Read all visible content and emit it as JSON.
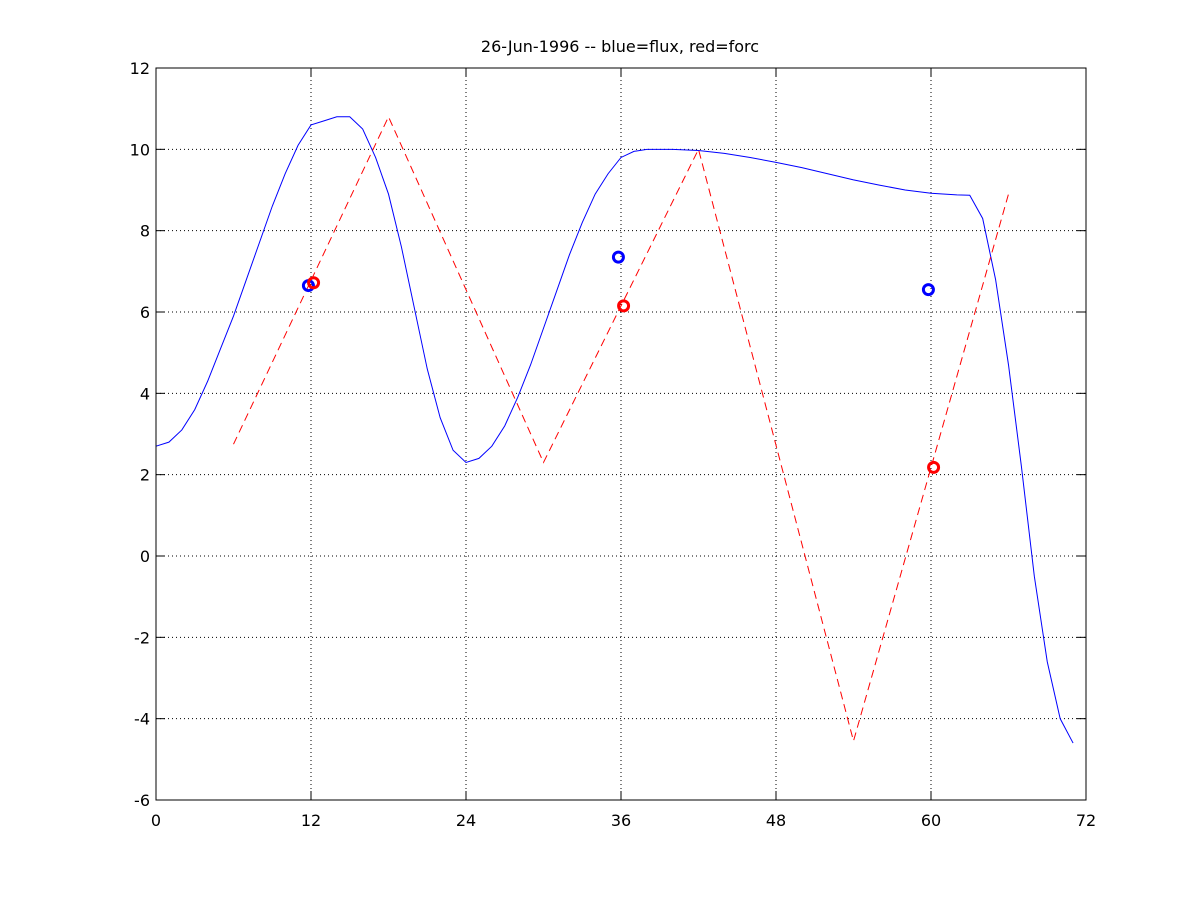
{
  "chart_data": {
    "type": "line",
    "title": "26-Jun-1996 -- blue=flux, red=forc",
    "xlim": [
      0,
      72
    ],
    "ylim": [
      -6,
      12
    ],
    "xticks": [
      0,
      12,
      24,
      36,
      48,
      60,
      72
    ],
    "yticks": [
      -6,
      -4,
      -2,
      0,
      2,
      4,
      6,
      8,
      10,
      12
    ],
    "grid": true,
    "series": [
      {
        "color": "#0000ff",
        "style": "solid",
        "points": [
          [
            0,
            2.7
          ],
          [
            1,
            2.8
          ],
          [
            2,
            3.1
          ],
          [
            3,
            3.6
          ],
          [
            4,
            4.3
          ],
          [
            5,
            5.1
          ],
          [
            6,
            5.9
          ],
          [
            7,
            6.8
          ],
          [
            8,
            7.7
          ],
          [
            9,
            8.6
          ],
          [
            10,
            9.4
          ],
          [
            11,
            10.1
          ],
          [
            12,
            10.6
          ],
          [
            13,
            10.7
          ],
          [
            14,
            10.8
          ],
          [
            15,
            10.8
          ],
          [
            16,
            10.5
          ],
          [
            17,
            9.8
          ],
          [
            18,
            8.9
          ],
          [
            19,
            7.6
          ],
          [
            20,
            6.1
          ],
          [
            21,
            4.6
          ],
          [
            22,
            3.4
          ],
          [
            23,
            2.6
          ],
          [
            24,
            2.3
          ],
          [
            25,
            2.4
          ],
          [
            26,
            2.7
          ],
          [
            27,
            3.2
          ],
          [
            28,
            3.9
          ],
          [
            29,
            4.7
          ],
          [
            30,
            5.6
          ],
          [
            31,
            6.5
          ],
          [
            32,
            7.4
          ],
          [
            33,
            8.2
          ],
          [
            34,
            8.9
          ],
          [
            35,
            9.4
          ],
          [
            36,
            9.8
          ],
          [
            37,
            9.95
          ],
          [
            38,
            10.0
          ],
          [
            40,
            10.0
          ],
          [
            42,
            9.97
          ],
          [
            44,
            9.9
          ],
          [
            46,
            9.8
          ],
          [
            48,
            9.68
          ],
          [
            50,
            9.55
          ],
          [
            52,
            9.4
          ],
          [
            54,
            9.25
          ],
          [
            56,
            9.12
          ],
          [
            58,
            9.0
          ],
          [
            60,
            8.92
          ],
          [
            62,
            8.88
          ],
          [
            63,
            8.87
          ],
          [
            64,
            8.3
          ],
          [
            65,
            6.8
          ],
          [
            66,
            4.7
          ],
          [
            67,
            2.2
          ],
          [
            68,
            -0.5
          ],
          [
            69,
            -2.6
          ],
          [
            70,
            -4.0
          ],
          [
            71,
            -4.6
          ]
        ]
      },
      {
        "color": "#ff0000",
        "style": "dashed",
        "points": [
          [
            6,
            2.75
          ],
          [
            18,
            10.8
          ],
          [
            30,
            2.3
          ],
          [
            42,
            10.0
          ],
          [
            54,
            -4.55
          ],
          [
            66,
            8.9
          ]
        ]
      }
    ],
    "markers": [
      {
        "color": "#0000ff",
        "x": 11.8,
        "y": 6.65
      },
      {
        "color": "#ff0000",
        "x": 12.2,
        "y": 6.72
      },
      {
        "color": "#0000ff",
        "x": 35.8,
        "y": 7.35
      },
      {
        "color": "#ff0000",
        "x": 36.2,
        "y": 6.15
      },
      {
        "color": "#0000ff",
        "x": 59.8,
        "y": 6.55
      },
      {
        "color": "#ff0000",
        "x": 60.2,
        "y": 2.18
      }
    ]
  }
}
